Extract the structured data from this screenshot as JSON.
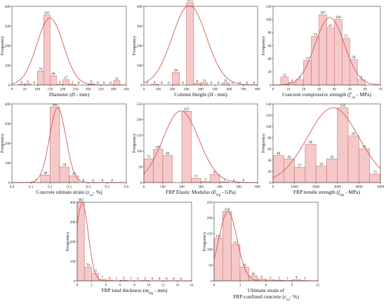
{
  "chart_data": [
    {
      "type": "bar",
      "xlabel_parts": [
        {
          "t": "Diameter ("
        },
        {
          "t": "D",
          "i": true
        },
        {
          "t": " - mm)"
        }
      ],
      "ylabel": "Frequency",
      "xlim": [
        0,
        450
      ],
      "ylim": [
        0,
        400
      ],
      "xticks": [
        0,
        50,
        100,
        150,
        200,
        250,
        300,
        350,
        400,
        450
      ],
      "yticks": [
        0,
        100,
        200,
        300,
        400
      ],
      "bin_width": 25,
      "bin_starts": [
        25,
        50,
        75,
        100,
        125,
        150,
        175,
        200,
        225,
        250,
        300,
        325,
        350,
        375,
        400
      ],
      "values": [
        4,
        6,
        0,
        70,
        355,
        46,
        4,
        27,
        2,
        0,
        6,
        0,
        0,
        0,
        22
      ],
      "labels": [
        "4",
        "6",
        "0",
        "70",
        "355",
        "46",
        "4",
        "27",
        "2",
        "0",
        "6",
        "0",
        "0",
        "0",
        "22"
      ],
      "curve": {
        "mean": 150,
        "sd": 52,
        "peak": 340
      }
    },
    {
      "type": "bar",
      "xlabel_parts": [
        {
          "t": "Column Height ("
        },
        {
          "t": "H",
          "i": true
        },
        {
          "t": " - mm)"
        }
      ],
      "ylabel": "Frequency",
      "xlim": [
        0,
        800
      ],
      "ylim": [
        0,
        400
      ],
      "xticks": [
        0,
        100,
        200,
        300,
        400,
        500,
        600,
        700,
        800
      ],
      "yticks": [
        0,
        100,
        200,
        300,
        400
      ],
      "bin_width": 50,
      "bin_starts": [
        0,
        50,
        100,
        150,
        200,
        250,
        300,
        350,
        400,
        450,
        500,
        550,
        600,
        650,
        700,
        750
      ],
      "values": [
        0,
        4,
        0,
        0,
        64,
        0,
        419,
        8,
        11,
        0,
        0,
        11,
        0,
        0,
        0,
        0
      ],
      "labels": [
        "0",
        "4",
        "0",
        "0",
        "64",
        "0",
        "419",
        "8",
        "11",
        "0",
        "0",
        "11",
        "0",
        "0",
        "0",
        "0"
      ],
      "curve": {
        "mean": 320,
        "sd": 120,
        "peak": 405
      }
    },
    {
      "type": "bar",
      "xlabel_parts": [
        {
          "t": "Concrete compressive strength ("
        },
        {
          "t": "f'",
          "i": true
        },
        {
          "t": "co",
          "sub": true
        },
        {
          "t": " - MPa)"
        }
      ],
      "ylabel": "Frequency",
      "xlim": [
        0,
        70
      ],
      "ylim": [
        0,
        120
      ],
      "xticks": [
        0,
        10,
        20,
        30,
        40,
        50,
        60,
        70
      ],
      "yticks": [
        0,
        20,
        40,
        60,
        80,
        100,
        120
      ],
      "bin_width": 5,
      "bin_starts": [
        5,
        10,
        15,
        20,
        25,
        30,
        35,
        40,
        45,
        50,
        55
      ],
      "values": [
        12,
        4,
        8,
        37,
        74,
        107,
        87,
        100,
        71,
        39,
        8
      ],
      "labels": [
        "12",
        "4",
        "8",
        "37",
        "74",
        "107",
        "87",
        "100",
        "71",
        "39",
        "8"
      ],
      "curve": {
        "mean": 37,
        "sd": 9.5,
        "peak": 103
      }
    },
    {
      "type": "bar",
      "xlabel_parts": [
        {
          "t": "Concrete utimate strain ("
        },
        {
          "t": "ε",
          "i": true
        },
        {
          "t": "co",
          "sub": true
        },
        {
          "t": "- %)"
        }
      ],
      "ylabel": "Frequency",
      "xlim": [
        0,
        0.6
      ],
      "ylim": [
        0,
        400
      ],
      "xticks": [
        0.0,
        0.1,
        0.2,
        0.3,
        0.4,
        0.5,
        0.6
      ],
      "yticks": [
        0,
        100,
        200,
        300,
        400
      ],
      "bin_width": 0.05,
      "bin_starts": [
        0.1,
        0.15,
        0.2,
        0.25,
        0.3,
        0.35,
        0.4,
        0.45,
        0.5
      ],
      "values": [
        1,
        38,
        384,
        79,
        34,
        0,
        0,
        0,
        0
      ],
      "labels": [
        "1",
        "38",
        "384",
        "79",
        "34",
        "0",
        "0",
        "0",
        "0"
      ],
      "curve": {
        "mean": 0.24,
        "sd": 0.043,
        "peak": 380
      }
    },
    {
      "type": "bar",
      "xlabel_parts": [
        {
          "t": "FRP Elastic Modulus ("
        },
        {
          "t": "E",
          "i": true
        },
        {
          "t": "frp",
          "sub": true
        },
        {
          "t": " - GPa)"
        }
      ],
      "ylabel": "Frequency",
      "xlim": [
        0,
        600
      ],
      "ylim": [
        0,
        250
      ],
      "xticks": [
        0,
        100,
        200,
        300,
        400,
        500,
        600
      ],
      "yticks": [
        0,
        50,
        100,
        150,
        200,
        250
      ],
      "bin_width": 50,
      "bin_starts": [
        0,
        50,
        100,
        200,
        250,
        300,
        350,
        400,
        450,
        500
      ],
      "values": [
        75,
        106,
        86,
        227,
        13,
        3,
        26,
        2,
        0,
        0
      ],
      "labels": [
        "75",
        "106",
        "86",
        "227",
        "13",
        "3",
        "26",
        "2",
        "0",
        "0"
      ],
      "curve": {
        "mean": 195,
        "sd": 95,
        "peak": 228
      }
    },
    {
      "type": "bar",
      "xlabel_parts": [
        {
          "t": "FRP tensile strength ("
        },
        {
          "t": "f",
          "i": true
        },
        {
          "t": "frp",
          "sub": true
        },
        {
          "t": " - MPa)"
        }
      ],
      "ylabel": "Frequency",
      "xlim": [
        0,
        5000
      ],
      "ylim": [
        0,
        140
      ],
      "xticks": [
        0,
        1000,
        2000,
        3000,
        4000,
        5000
      ],
      "yticks": [
        0,
        20,
        40,
        60,
        80,
        100,
        120,
        140
      ],
      "bin_width": 500,
      "bin_starts": [
        0,
        500,
        1000,
        1500,
        2000,
        2500,
        3000,
        3500,
        4000,
        4500
      ],
      "values": [
        48,
        42,
        27,
        68,
        29,
        42,
        133,
        83,
        60,
        15
      ],
      "labels": [
        "48",
        "42",
        "27",
        "68",
        "29",
        "42",
        "133",
        "83",
        "60",
        "15"
      ],
      "curve": {
        "mean": 2800,
        "sd": 1200,
        "peak": 133
      }
    },
    {
      "type": "bar",
      "xlabel_parts": [
        {
          "t": "FRP total thickness ("
        },
        {
          "t": "nt",
          "i": true
        },
        {
          "t": "frp",
          "sub": true
        },
        {
          "t": " - mm)"
        }
      ],
      "ylabel": "Frequency",
      "xlim": [
        0,
        16
      ],
      "ylim": [
        0,
        400
      ],
      "xticks": [
        0,
        2,
        4,
        6,
        8,
        10,
        12,
        14,
        16
      ],
      "yticks": [
        0,
        100,
        200,
        300,
        400
      ],
      "bin_width": 1,
      "bin_starts": [
        0,
        1,
        2,
        3,
        4,
        5,
        6,
        7,
        8,
        9,
        10,
        11,
        12,
        13,
        14
      ],
      "values": [
        402,
        70,
        37,
        7,
        4,
        1,
        3,
        1,
        0,
        2,
        0,
        0,
        0,
        0,
        0
      ],
      "labels": [
        "402",
        "70",
        "37",
        "7",
        "4",
        "1",
        "3",
        "1",
        "0",
        "2",
        "0",
        "0",
        "0",
        "0",
        "0"
      ],
      "curve": {
        "mean": 0.7,
        "sd": 0.85,
        "peak": 395
      }
    },
    {
      "type": "bar",
      "xlabel_parts": [
        {
          "t": "Ultimate strain of"
        },
        {
          "t": "FRP-confined concrete  (",
          "br": true
        },
        {
          "t": "ε",
          "i": true
        },
        {
          "t": "cu",
          "sub": true
        },
        {
          "t": "- %)"
        }
      ],
      "ylabel": "Frequency",
      "xlim": [
        0,
        12
      ],
      "ylim": [
        0,
        250
      ],
      "xticks": [
        0,
        3,
        6,
        9,
        12
      ],
      "yticks": [
        0,
        50,
        100,
        150,
        200,
        250
      ],
      "bin_width": 1,
      "bin_starts": [
        0,
        1,
        2,
        3,
        4,
        5,
        6,
        7,
        8,
        9,
        10
      ],
      "values": [
        135,
        220,
        115,
        44,
        16,
        6,
        3,
        2,
        1,
        4,
        1
      ],
      "labels": [
        "135",
        "220",
        "115",
        "44",
        "16",
        "6",
        "3",
        "2",
        "1",
        "4",
        "1"
      ],
      "curve": {
        "mean": 1.6,
        "sd": 1.05,
        "peak": 220
      }
    }
  ]
}
